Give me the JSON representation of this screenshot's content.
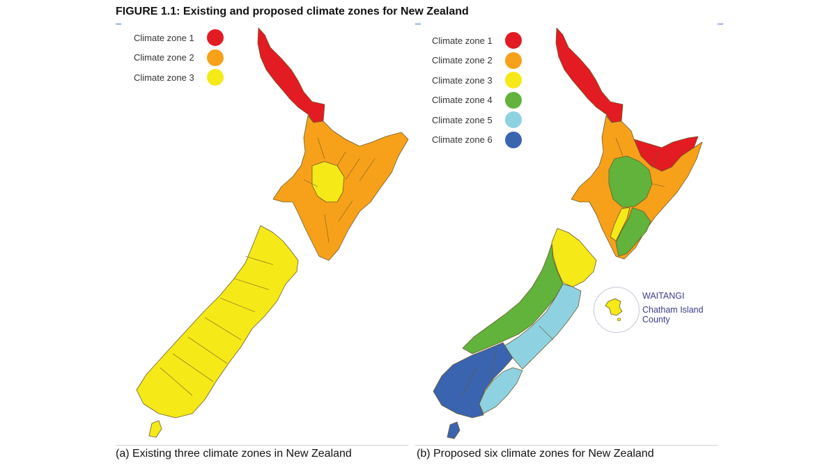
{
  "figure_title": "FIGURE 1.1: Existing and proposed climate zones for New Zealand",
  "colors": {
    "zone1": "#e31b23",
    "zone2": "#f7a11a",
    "zone3": "#f5e918",
    "zone4": "#61b33b",
    "zone5": "#8ed2e2",
    "zone6": "#3a64b0",
    "border": "#6b5a2a",
    "chatham_text": "#3a3c8c"
  },
  "panel_a": {
    "legend": [
      {
        "label": "Climate zone 1",
        "color": "#e31b23"
      },
      {
        "label": "Climate zone 2",
        "color": "#f7a11a"
      },
      {
        "label": "Climate zone 3",
        "color": "#f5e918"
      }
    ],
    "caption": "(a) Existing three climate zones in New Zealand"
  },
  "panel_b": {
    "legend": [
      {
        "label": "Climate zone 1",
        "color": "#e31b23"
      },
      {
        "label": "Climate zone 2",
        "color": "#f7a11a"
      },
      {
        "label": "Climate zone 3",
        "color": "#f5e918"
      },
      {
        "label": "Climate zone 4",
        "color": "#61b33b"
      },
      {
        "label": "Climate zone 5",
        "color": "#8ed2e2"
      },
      {
        "label": "Climate zone 6",
        "color": "#3a64b0"
      }
    ],
    "caption": "(b) Proposed six climate zones for New Zealand",
    "inset": {
      "name": "WAITANGI",
      "county_line1": "Chatham Island",
      "county_line2": "County"
    }
  }
}
